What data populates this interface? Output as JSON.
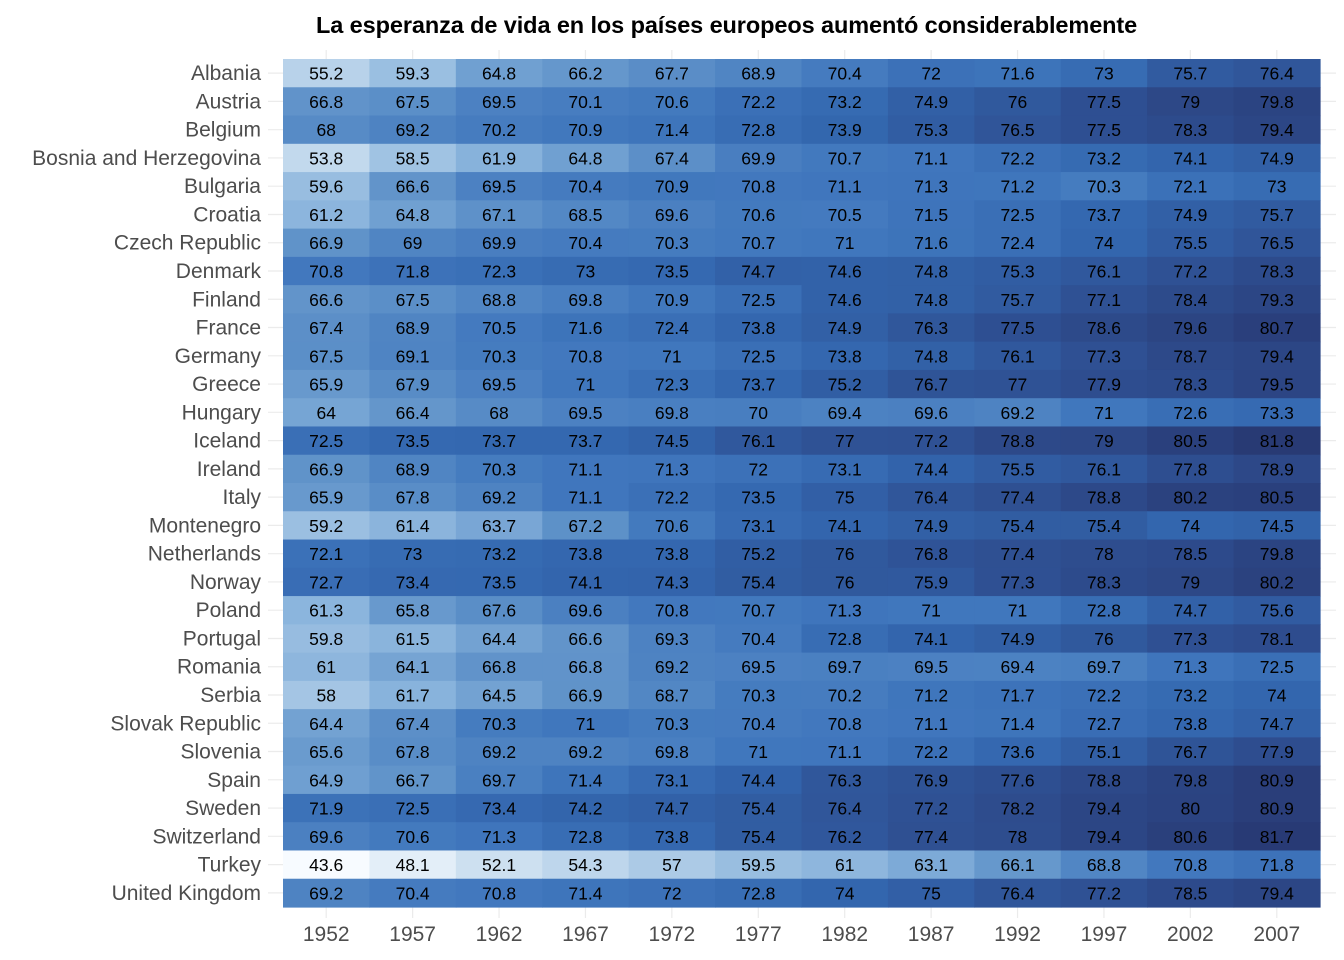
{
  "chart_data": {
    "type": "heatmap",
    "title": "La esperanza de vida en los países europeos aumentó considerablemente",
    "xlabel": "",
    "ylabel": "",
    "legend": "none",
    "grid": true,
    "value_label": "lifeExp",
    "color_scale": {
      "low_value": 43.6,
      "high_value": 81.8,
      "stops": [
        {
          "value": 43.6,
          "color": "#f7fbff"
        },
        {
          "value": 50,
          "color": "#dbe9f5"
        },
        {
          "value": 56,
          "color": "#b3cfe8"
        },
        {
          "value": 62,
          "color": "#86b1db"
        },
        {
          "value": 67,
          "color": "#5f92c9"
        },
        {
          "value": 71,
          "color": "#4077bd"
        },
        {
          "value": 74,
          "color": "#3366ae"
        },
        {
          "value": 77,
          "color": "#2f5295"
        },
        {
          "value": 79.5,
          "color": "#2c4584"
        },
        {
          "value": 81.8,
          "color": "#283a74"
        }
      ]
    },
    "x": [
      "1952",
      "1957",
      "1962",
      "1967",
      "1972",
      "1977",
      "1982",
      "1987",
      "1992",
      "1997",
      "2002",
      "2007"
    ],
    "y": [
      "Albania",
      "Austria",
      "Belgium",
      "Bosnia and Herzegovina",
      "Bulgaria",
      "Croatia",
      "Czech Republic",
      "Denmark",
      "Finland",
      "France",
      "Germany",
      "Greece",
      "Hungary",
      "Iceland",
      "Ireland",
      "Italy",
      "Montenegro",
      "Netherlands",
      "Norway",
      "Poland",
      "Portugal",
      "Romania",
      "Serbia",
      "Slovak Republic",
      "Slovenia",
      "Spain",
      "Sweden",
      "Switzerland",
      "Turkey",
      "United Kingdom"
    ],
    "values": [
      [
        55.2,
        59.3,
        64.8,
        66.2,
        67.7,
        68.9,
        70.4,
        72,
        71.6,
        73,
        75.7,
        76.4
      ],
      [
        66.8,
        67.5,
        69.5,
        70.1,
        70.6,
        72.2,
        73.2,
        74.9,
        76,
        77.5,
        79,
        79.8
      ],
      [
        68,
        69.2,
        70.2,
        70.9,
        71.4,
        72.8,
        73.9,
        75.3,
        76.5,
        77.5,
        78.3,
        79.4
      ],
      [
        53.8,
        58.5,
        61.9,
        64.8,
        67.4,
        69.9,
        70.7,
        71.1,
        72.2,
        73.2,
        74.1,
        74.9
      ],
      [
        59.6,
        66.6,
        69.5,
        70.4,
        70.9,
        70.8,
        71.1,
        71.3,
        71.2,
        70.3,
        72.1,
        73
      ],
      [
        61.2,
        64.8,
        67.1,
        68.5,
        69.6,
        70.6,
        70.5,
        71.5,
        72.5,
        73.7,
        74.9,
        75.7
      ],
      [
        66.9,
        69,
        69.9,
        70.4,
        70.3,
        70.7,
        71,
        71.6,
        72.4,
        74,
        75.5,
        76.5
      ],
      [
        70.8,
        71.8,
        72.3,
        73,
        73.5,
        74.7,
        74.6,
        74.8,
        75.3,
        76.1,
        77.2,
        78.3
      ],
      [
        66.6,
        67.5,
        68.8,
        69.8,
        70.9,
        72.5,
        74.6,
        74.8,
        75.7,
        77.1,
        78.4,
        79.3
      ],
      [
        67.4,
        68.9,
        70.5,
        71.6,
        72.4,
        73.8,
        74.9,
        76.3,
        77.5,
        78.6,
        79.6,
        80.7
      ],
      [
        67.5,
        69.1,
        70.3,
        70.8,
        71,
        72.5,
        73.8,
        74.8,
        76.1,
        77.3,
        78.7,
        79.4
      ],
      [
        65.9,
        67.9,
        69.5,
        71,
        72.3,
        73.7,
        75.2,
        76.7,
        77,
        77.9,
        78.3,
        79.5
      ],
      [
        64,
        66.4,
        68,
        69.5,
        69.8,
        70,
        69.4,
        69.6,
        69.2,
        71,
        72.6,
        73.3
      ],
      [
        72.5,
        73.5,
        73.7,
        73.7,
        74.5,
        76.1,
        77,
        77.2,
        78.8,
        79,
        80.5,
        81.8
      ],
      [
        66.9,
        68.9,
        70.3,
        71.1,
        71.3,
        72,
        73.1,
        74.4,
        75.5,
        76.1,
        77.8,
        78.9
      ],
      [
        65.9,
        67.8,
        69.2,
        71.1,
        72.2,
        73.5,
        75,
        76.4,
        77.4,
        78.8,
        80.2,
        80.5
      ],
      [
        59.2,
        61.4,
        63.7,
        67.2,
        70.6,
        73.1,
        74.1,
        74.9,
        75.4,
        75.4,
        74,
        74.5
      ],
      [
        72.1,
        73,
        73.2,
        73.8,
        73.8,
        75.2,
        76,
        76.8,
        77.4,
        78,
        78.5,
        79.8
      ],
      [
        72.7,
        73.4,
        73.5,
        74.1,
        74.3,
        75.4,
        76,
        75.9,
        77.3,
        78.3,
        79,
        80.2
      ],
      [
        61.3,
        65.8,
        67.6,
        69.6,
        70.8,
        70.7,
        71.3,
        71,
        71,
        72.8,
        74.7,
        75.6
      ],
      [
        59.8,
        61.5,
        64.4,
        66.6,
        69.3,
        70.4,
        72.8,
        74.1,
        74.9,
        76,
        77.3,
        78.1
      ],
      [
        61,
        64.1,
        66.8,
        66.8,
        69.2,
        69.5,
        69.7,
        69.5,
        69.4,
        69.7,
        71.3,
        72.5
      ],
      [
        58,
        61.7,
        64.5,
        66.9,
        68.7,
        70.3,
        70.2,
        71.2,
        71.7,
        72.2,
        73.2,
        74
      ],
      [
        64.4,
        67.4,
        70.3,
        71,
        70.3,
        70.4,
        70.8,
        71.1,
        71.4,
        72.7,
        73.8,
        74.7
      ],
      [
        65.6,
        67.8,
        69.2,
        69.2,
        69.8,
        71,
        71.1,
        72.2,
        73.6,
        75.1,
        76.7,
        77.9
      ],
      [
        64.9,
        66.7,
        69.7,
        71.4,
        73.1,
        74.4,
        76.3,
        76.9,
        77.6,
        78.8,
        79.8,
        80.9
      ],
      [
        71.9,
        72.5,
        73.4,
        74.2,
        74.7,
        75.4,
        76.4,
        77.2,
        78.2,
        79.4,
        80,
        80.9
      ],
      [
        69.6,
        70.6,
        71.3,
        72.8,
        73.8,
        75.4,
        76.2,
        77.4,
        78,
        79.4,
        80.6,
        81.7
      ],
      [
        43.6,
        48.1,
        52.1,
        54.3,
        57,
        59.5,
        61,
        63.1,
        66.1,
        68.8,
        70.8,
        71.8
      ],
      [
        69.2,
        70.4,
        70.8,
        71.4,
        72,
        72.8,
        74,
        75,
        76.4,
        77.2,
        78.5,
        79.4
      ]
    ]
  }
}
